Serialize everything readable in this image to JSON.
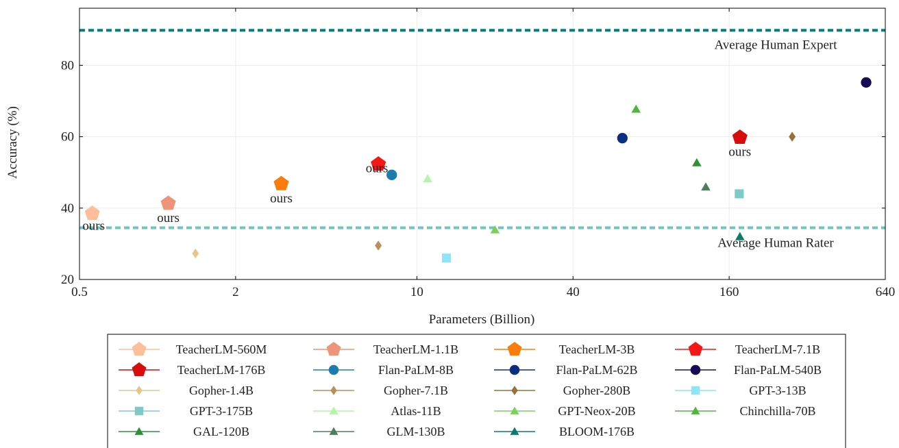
{
  "chart_data": {
    "type": "scatter",
    "xscale": "log2",
    "xlabel": "Parameters (Billion)",
    "ylabel": "Accuracy (%)",
    "xlim": [
      0.5,
      640
    ],
    "ylim": [
      20,
      96
    ],
    "xticks": [
      0.5,
      2,
      10,
      40,
      160,
      640
    ],
    "xtick_labels": [
      "0.5",
      "2",
      "10",
      "40",
      "160",
      "640"
    ],
    "yticks": [
      20,
      40,
      60,
      80
    ],
    "ytick_labels": [
      "20",
      "40",
      "60",
      "80"
    ],
    "grid": true,
    "legend_position": "bottom",
    "reference_lines": [
      {
        "label": "Average Human Expert",
        "y": 89.8,
        "color": "#00807f"
      },
      {
        "label": "Average Human Rater",
        "y": 34.5,
        "color": "#6cc5c0"
      }
    ],
    "series": [
      {
        "name": "TeacherLM-560M",
        "x": 0.56,
        "y": 38.5,
        "marker": "pentagon",
        "color": "#fdbf99",
        "label": "ours"
      },
      {
        "name": "TeacherLM-1.1B",
        "x": 1.1,
        "y": 41.3,
        "marker": "pentagon",
        "color": "#ef9478",
        "label": "ours"
      },
      {
        "name": "TeacherLM-3B",
        "x": 3.0,
        "y": 46.8,
        "marker": "pentagon",
        "color": "#f97c0c",
        "label": "ours"
      },
      {
        "name": "TeacherLM-7.1B",
        "x": 7.1,
        "y": 52.3,
        "marker": "pentagon",
        "color": "#f51616",
        "label": "ours"
      },
      {
        "name": "TeacherLM-176B",
        "x": 176,
        "y": 59.8,
        "marker": "pentagon",
        "color": "#d80c0c",
        "label": "ours"
      },
      {
        "name": "Flan-PaLM-8B",
        "x": 8,
        "y": 49.3,
        "marker": "circle",
        "color": "#1e7bb0"
      },
      {
        "name": "Flan-PaLM-62B",
        "x": 62,
        "y": 59.6,
        "marker": "circle",
        "color": "#0b2f80"
      },
      {
        "name": "Flan-PaLM-540B",
        "x": 540,
        "y": 75.2,
        "marker": "circle",
        "color": "#170b56"
      },
      {
        "name": "Gopher-1.4B",
        "x": 1.4,
        "y": 27.3,
        "marker": "diamond",
        "color": "#e2c889"
      },
      {
        "name": "Gopher-7.1B",
        "x": 7.1,
        "y": 29.5,
        "marker": "diamond",
        "color": "#b98f57"
      },
      {
        "name": "Gopher-280B",
        "x": 280,
        "y": 60.0,
        "marker": "diamond",
        "color": "#987039"
      },
      {
        "name": "GPT-3-13B",
        "x": 13,
        "y": 26.0,
        "marker": "square",
        "color": "#8fe4fa"
      },
      {
        "name": "GPT-3-175B",
        "x": 175,
        "y": 44.0,
        "marker": "square",
        "color": "#7ecac6"
      },
      {
        "name": "Atlas-11B",
        "x": 11,
        "y": 48.2,
        "marker": "triangle",
        "color": "#b3f6a9"
      },
      {
        "name": "GPT-Neox-20B",
        "x": 20,
        "y": 33.9,
        "marker": "triangle",
        "color": "#7cd158"
      },
      {
        "name": "Chinchilla-70B",
        "x": 70,
        "y": 67.7,
        "marker": "triangle",
        "color": "#4fb739"
      },
      {
        "name": "GAL-120B",
        "x": 120,
        "y": 52.7,
        "marker": "triangle",
        "color": "#2e8f35"
      },
      {
        "name": "GLM-130B",
        "x": 130,
        "y": 45.9,
        "marker": "triangle",
        "color": "#4e7e59"
      },
      {
        "name": "BLOOM-176B",
        "x": 176,
        "y": 32.0,
        "marker": "triangle",
        "color": "#0e7a6a"
      }
    ]
  }
}
